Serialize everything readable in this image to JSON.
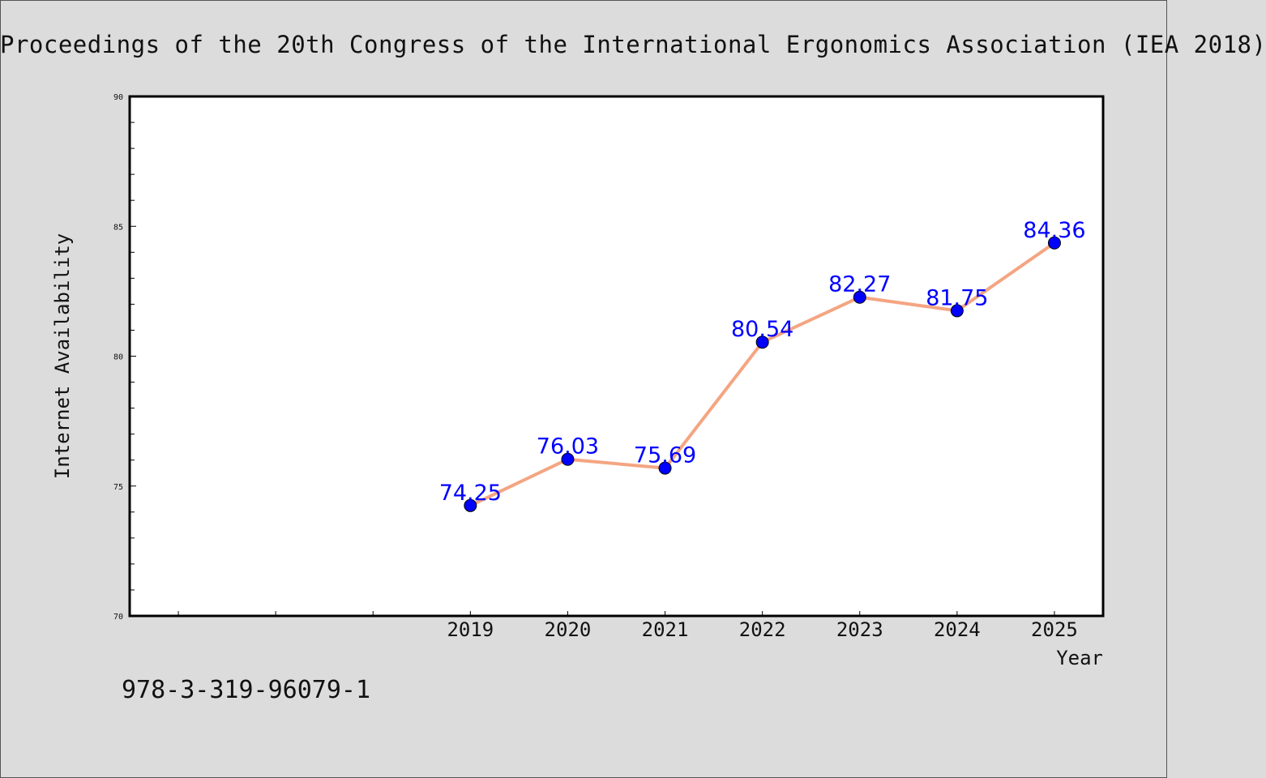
{
  "header": {
    "title": "Proceedings of the 20th Congress of the International Ergonomics Association (IEA 2018)"
  },
  "footer": {
    "isbn": "978-3-319-96079-1"
  },
  "chart_data": {
    "type": "line",
    "title": "Proceedings of the 20th Congress of the International Ergonomics Association (IEA 2018)",
    "xlabel": "Year",
    "ylabel": "Internet Availability",
    "categories": [
      "2019",
      "2020",
      "2021",
      "2022",
      "2023",
      "2024",
      "2025"
    ],
    "category_slots": 10,
    "first_category_slot": 3,
    "series": [
      {
        "values": [
          74.25,
          76.03,
          75.69,
          80.54,
          82.27,
          81.75,
          84.36
        ],
        "labels": [
          "74.25",
          "76.03",
          "75.69",
          "80.54",
          "82.27",
          "81.75",
          "84.36"
        ],
        "line_color": "#f4a582",
        "marker_color": "#0000ff"
      }
    ],
    "ylim": [
      70,
      90
    ],
    "yticks": [
      "70",
      "75",
      "80",
      "85",
      "90"
    ],
    "grid": false,
    "legend": "none",
    "colors": {
      "background": "#dcdcdc",
      "plot_background": "#ffffff",
      "line": "#f4a582",
      "marker": "#0000ff",
      "data_label": "#0000ff"
    }
  }
}
